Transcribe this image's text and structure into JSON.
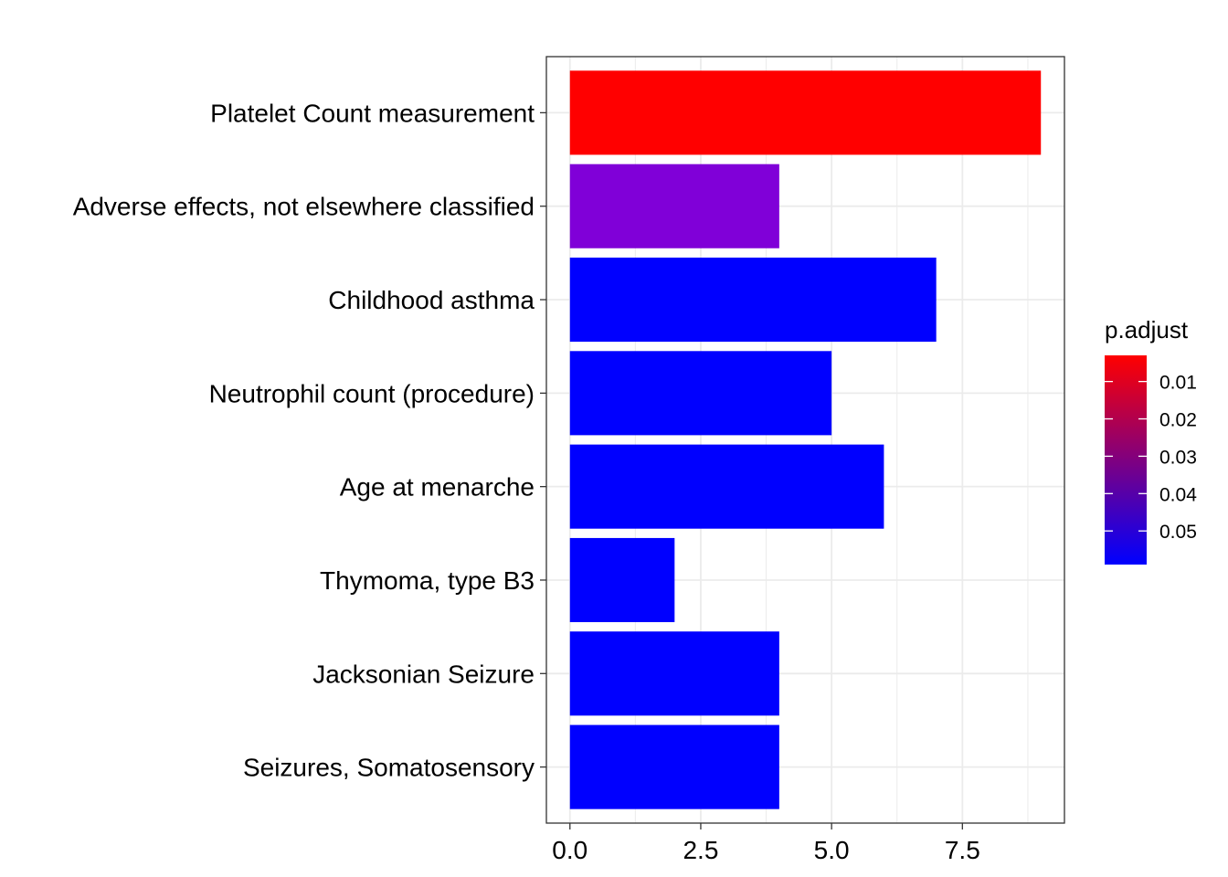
{
  "chart_data": {
    "type": "bar",
    "orientation": "horizontal",
    "categories": [
      "Platelet Count measurement",
      "Adverse effects, not elsewhere classified",
      "Childhood asthma",
      "Neutrophil count (procedure)",
      "Age at menarche",
      "Thymoma, type B3",
      "Jacksonian Seizure",
      "Seizures, Somatosensory"
    ],
    "values": [
      9,
      4,
      7,
      5,
      6,
      2,
      4,
      4
    ],
    "p_adjust": [
      0.004,
      0.04,
      0.058,
      0.058,
      0.058,
      0.058,
      0.058,
      0.058
    ],
    "bar_colors": [
      "#FF0000",
      "#8000D8",
      "#0000FF",
      "#0000FF",
      "#0000FF",
      "#0000FF",
      "#0000FF",
      "#0000FF"
    ],
    "xlim": [
      -0.45,
      9.45
    ],
    "x_ticks": [
      0.0,
      2.5,
      5.0,
      7.5
    ],
    "x_tick_labels": [
      "0.0",
      "2.5",
      "5.0",
      "7.5"
    ],
    "grid": true,
    "legend": {
      "title": "p.adjust",
      "placement": "right",
      "type": "colorbar",
      "color_low_p": "#FF0000",
      "color_high_p": "#0000FF",
      "range": [
        0.003,
        0.059
      ],
      "ticks": [
        0.01,
        0.02,
        0.03,
        0.04,
        0.05
      ],
      "tick_labels": [
        "0.01",
        "0.02",
        "0.03",
        "0.04",
        "0.05"
      ]
    }
  }
}
